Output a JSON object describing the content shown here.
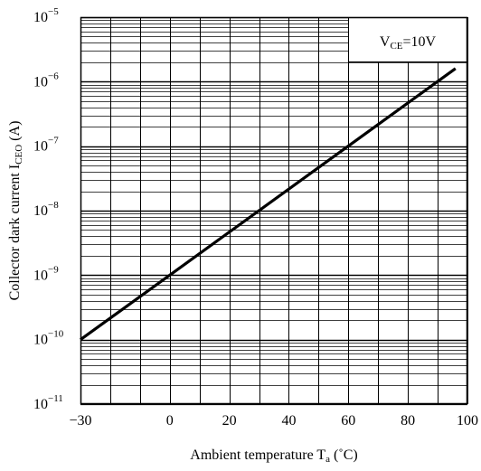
{
  "chart_data": {
    "type": "line",
    "title": "",
    "xlabel": "Ambient temperature T",
    "xlabel_sub": "a",
    "xlabel_unit": " (˚C)",
    "ylabel": "Collector dark current I",
    "ylabel_sub": "CEO",
    "ylabel_unit": " (A)",
    "xlim": [
      -30,
      100
    ],
    "ylim": [
      1e-11,
      1e-05
    ],
    "y_scale": "log",
    "grid": true,
    "x_ticks": [
      -30,
      -20,
      -10,
      0,
      10,
      20,
      30,
      40,
      50,
      60,
      70,
      80,
      90,
      100
    ],
    "x_tick_labels": [
      {
        "value": -30,
        "label": "−30"
      },
      {
        "value": 0,
        "label": "0"
      },
      {
        "value": 20,
        "label": "20"
      },
      {
        "value": 40,
        "label": "40"
      },
      {
        "value": 60,
        "label": "60"
      },
      {
        "value": 80,
        "label": "80"
      },
      {
        "value": 100,
        "label": "100"
      }
    ],
    "y_tick_labels": [
      {
        "exp": -5,
        "base": "10",
        "sup": "−5"
      },
      {
        "exp": -6,
        "base": "10",
        "sup": "−6"
      },
      {
        "exp": -7,
        "base": "10",
        "sup": "−7"
      },
      {
        "exp": -8,
        "base": "10",
        "sup": "−8"
      },
      {
        "exp": -9,
        "base": "10",
        "sup": "−9"
      },
      {
        "exp": -10,
        "base": "10",
        "sup": "−10"
      },
      {
        "exp": -11,
        "base": "10",
        "sup": "−11"
      }
    ],
    "legend": {
      "position": "top-right",
      "main": "V",
      "sub": "CE",
      "rest": "=10V"
    },
    "series": [
      {
        "x": [
          -30,
          0,
          96
        ],
        "y": [
          1e-10,
          1e-09,
          1.6e-06
        ]
      }
    ],
    "line_color": "#000000"
  }
}
